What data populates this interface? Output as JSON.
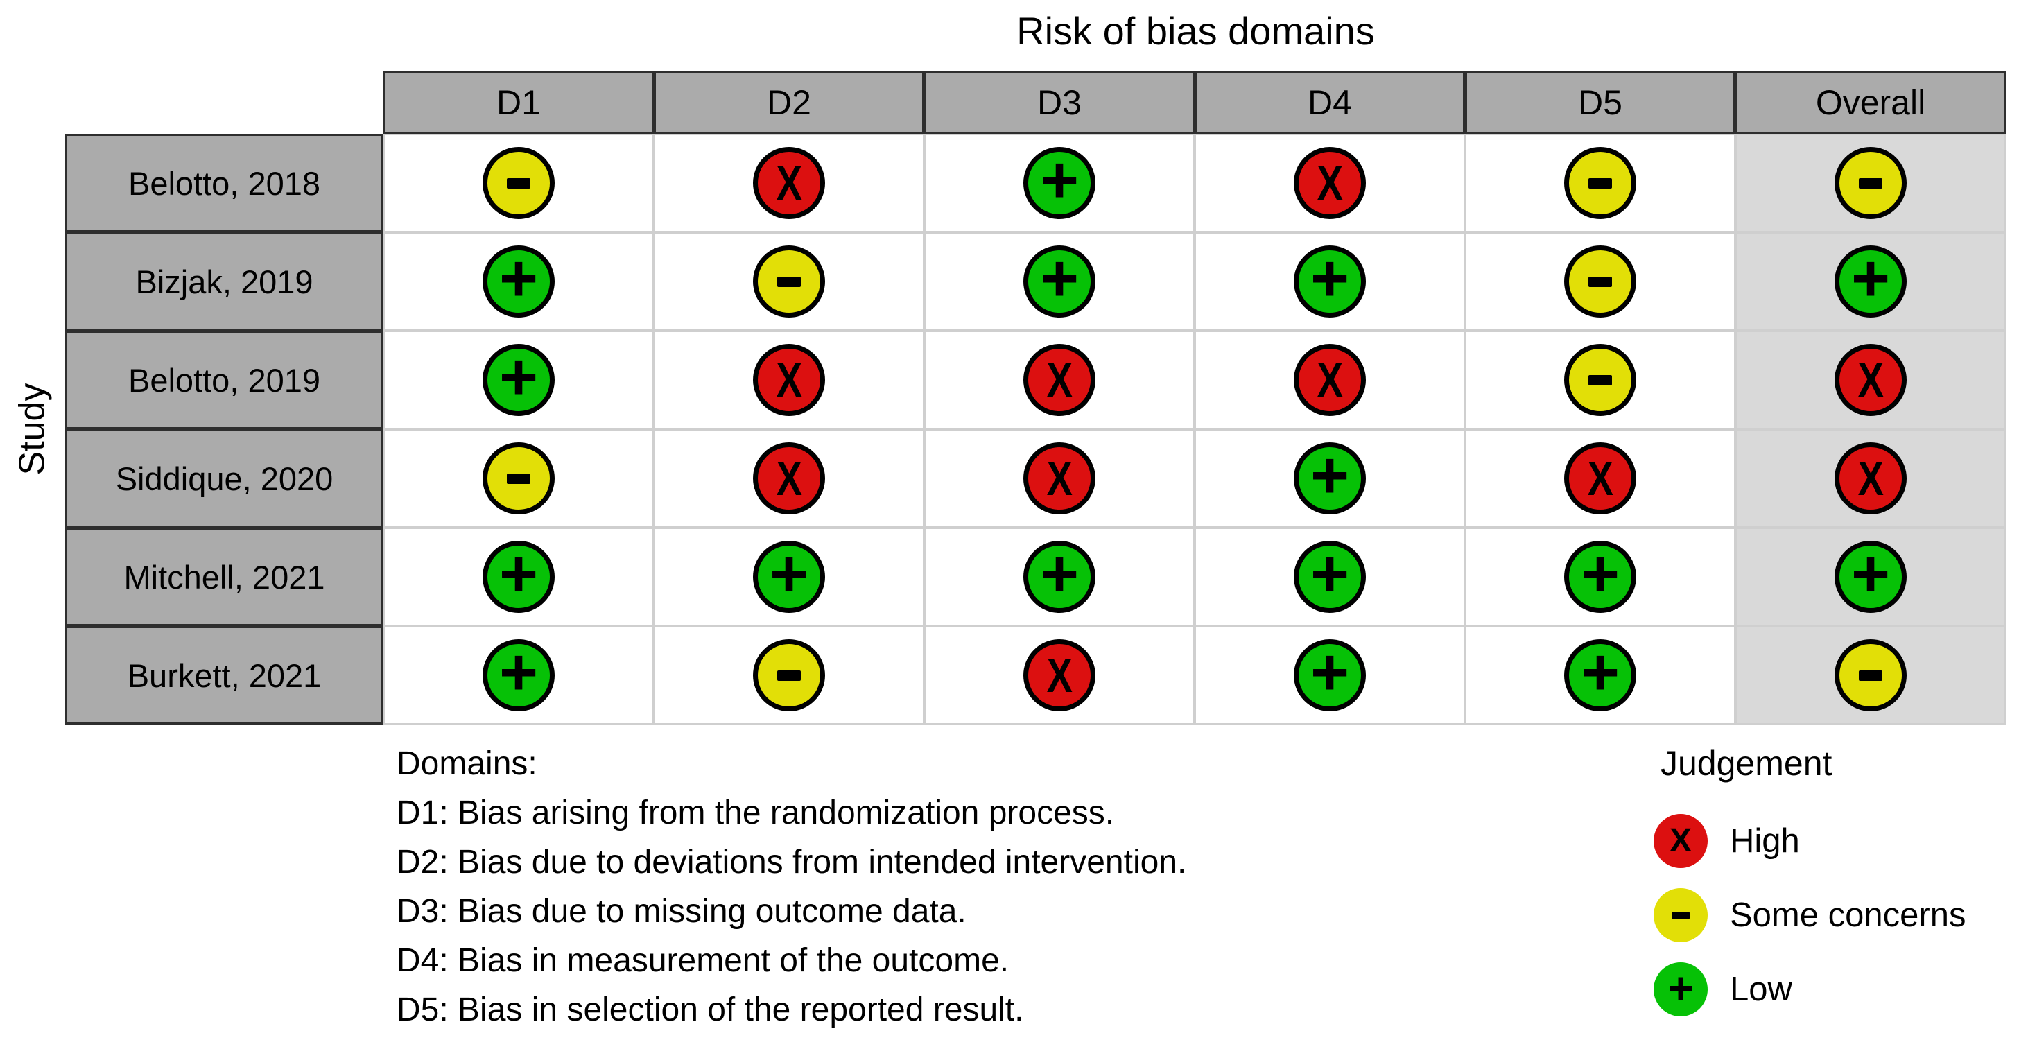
{
  "chart_data": {
    "type": "table",
    "title": "Risk of bias domains",
    "ylabel": "Study",
    "columns": [
      "D1",
      "D2",
      "D3",
      "D4",
      "D5",
      "Overall"
    ],
    "rows": [
      {
        "study": "Belotto, 2018",
        "judgements": [
          "some_concerns",
          "high",
          "low",
          "high",
          "some_concerns",
          "some_concerns"
        ]
      },
      {
        "study": "Bizjak, 2019",
        "judgements": [
          "low",
          "some_concerns",
          "low",
          "low",
          "some_concerns",
          "low"
        ]
      },
      {
        "study": "Belotto, 2019",
        "judgements": [
          "low",
          "high",
          "high",
          "high",
          "some_concerns",
          "high"
        ]
      },
      {
        "study": "Siddique, 2020",
        "judgements": [
          "some_concerns",
          "high",
          "high",
          "low",
          "high",
          "high"
        ]
      },
      {
        "study": "Mitchell, 2021",
        "judgements": [
          "low",
          "low",
          "low",
          "low",
          "low",
          "low"
        ]
      },
      {
        "study": "Burkett, 2021",
        "judgements": [
          "low",
          "some_concerns",
          "high",
          "low",
          "low",
          "some_concerns"
        ]
      }
    ],
    "legend": {
      "title": "Judgement",
      "items": [
        {
          "judgement": "high",
          "symbol": "x",
          "label": "High",
          "color": "#DC1010"
        },
        {
          "judgement": "some_concerns",
          "symbol": "minus",
          "label": "Some concerns",
          "color": "#E2DF07"
        },
        {
          "judgement": "low",
          "symbol": "plus",
          "label": "Low",
          "color": "#06C106"
        }
      ],
      "position": "bottom-right"
    },
    "footnotes": {
      "heading": "Domains:",
      "lines": [
        "D1: Bias arising from the randomization process.",
        "D2: Bias due to deviations from intended intervention.",
        "D3: Bias due to missing outcome data.",
        "D4: Bias in measurement of the outcome.",
        "D5: Bias in selection of the reported result."
      ]
    }
  },
  "styles": {
    "header_bg": "#ABABAB",
    "overall_column_bg": "#D9D9D9",
    "body_cell_border": "#CFCFCF",
    "dark_border": "#2E2E2E",
    "high_color": "#DC1010",
    "some_concerns_color": "#E2DF07",
    "low_color": "#06C106"
  }
}
